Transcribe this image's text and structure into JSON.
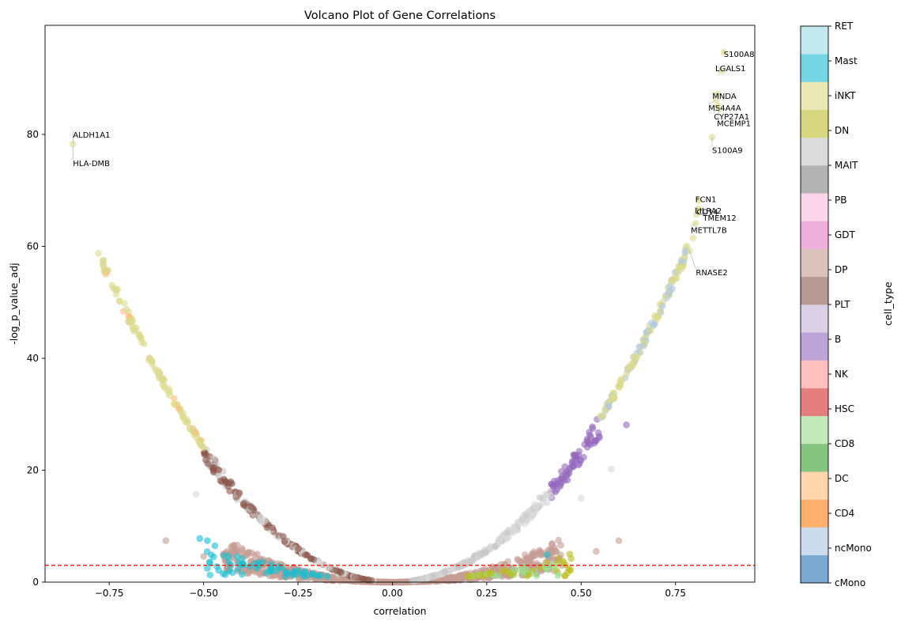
{
  "chart_data": {
    "type": "scatter",
    "title": "Volcano Plot of Gene Correlations",
    "xlabel": "correlation",
    "ylabel": "-log_p_value_adj",
    "xlim": [
      -0.92,
      0.96
    ],
    "ylim": [
      0,
      99.5
    ],
    "x_ticks": [
      -0.75,
      -0.5,
      -0.25,
      0.0,
      0.25,
      0.5,
      0.75
    ],
    "x_tick_labels": [
      "−0.75",
      "−0.50",
      "−0.25",
      "0.00",
      "0.25",
      "0.50",
      "0.75"
    ],
    "y_ticks": [
      0,
      20,
      40,
      60,
      80
    ],
    "y_tick_labels": [
      "0",
      "20",
      "40",
      "60",
      "80"
    ],
    "threshold_line": {
      "y": 3.0,
      "color": "#ff0000",
      "style": "dashed"
    },
    "grid": false,
    "colorbar": {
      "label": "cell_type",
      "categories": [
        "cMono",
        "ncMono",
        "CD4",
        "DC",
        "CD8",
        "HSC",
        "NK",
        "B",
        "PLT",
        "DP",
        "GDT",
        "PB",
        "MAIT",
        "DN",
        "iNKT",
        "Mast",
        "RET"
      ],
      "colors": [
        "#7ba9d1",
        "#cddbef",
        "#ffb06e",
        "#ffd6ae",
        "#86c57f",
        "#c4eabb",
        "#e57f7f",
        "#ffbfbe",
        "#bca4d6",
        "#dbd0e6",
        "#b89a94",
        "#dbc3bc",
        "#edb0dc",
        "#fbd6e8",
        "#b3b3b3",
        "#dcdcdc",
        "#d6d77e",
        "#e9e8b6",
        "#74d6e3",
        "#c3e8ee"
      ]
    },
    "labeled_points": [
      {
        "gene": "S100A8",
        "x": 0.878,
        "y": 94.7
      },
      {
        "gene": "LGALS1",
        "x": 0.872,
        "y": 91.3
      },
      {
        "gene": "MNDA",
        "x": 0.862,
        "y": 87.2
      },
      {
        "gene": "MS4A4A",
        "x": 0.858,
        "y": 86.2
      },
      {
        "gene": "CYP27A1",
        "x": 0.862,
        "y": 85.2
      },
      {
        "gene": "MCEMP1",
        "x": 0.866,
        "y": 84.6
      },
      {
        "gene": "S100A9",
        "x": 0.847,
        "y": 79.5
      },
      {
        "gene": "ALDH1A1",
        "x": -0.846,
        "y": 78.3
      },
      {
        "gene": "HLA-DMB",
        "x": -0.846,
        "y": 77.9
      },
      {
        "gene": "FCN1",
        "x": 0.811,
        "y": 68.2
      },
      {
        "gene": "CD14",
        "x": 0.808,
        "y": 66.5
      },
      {
        "gene": "LILRA2",
        "x": 0.812,
        "y": 66.7
      },
      {
        "gene": "TMEM12",
        "x": 0.806,
        "y": 65.7
      },
      {
        "gene": "METTL7B",
        "x": 0.803,
        "y": 64.1
      },
      {
        "gene": "RNASE2",
        "x": 0.787,
        "y": 59.2
      }
    ]
  }
}
